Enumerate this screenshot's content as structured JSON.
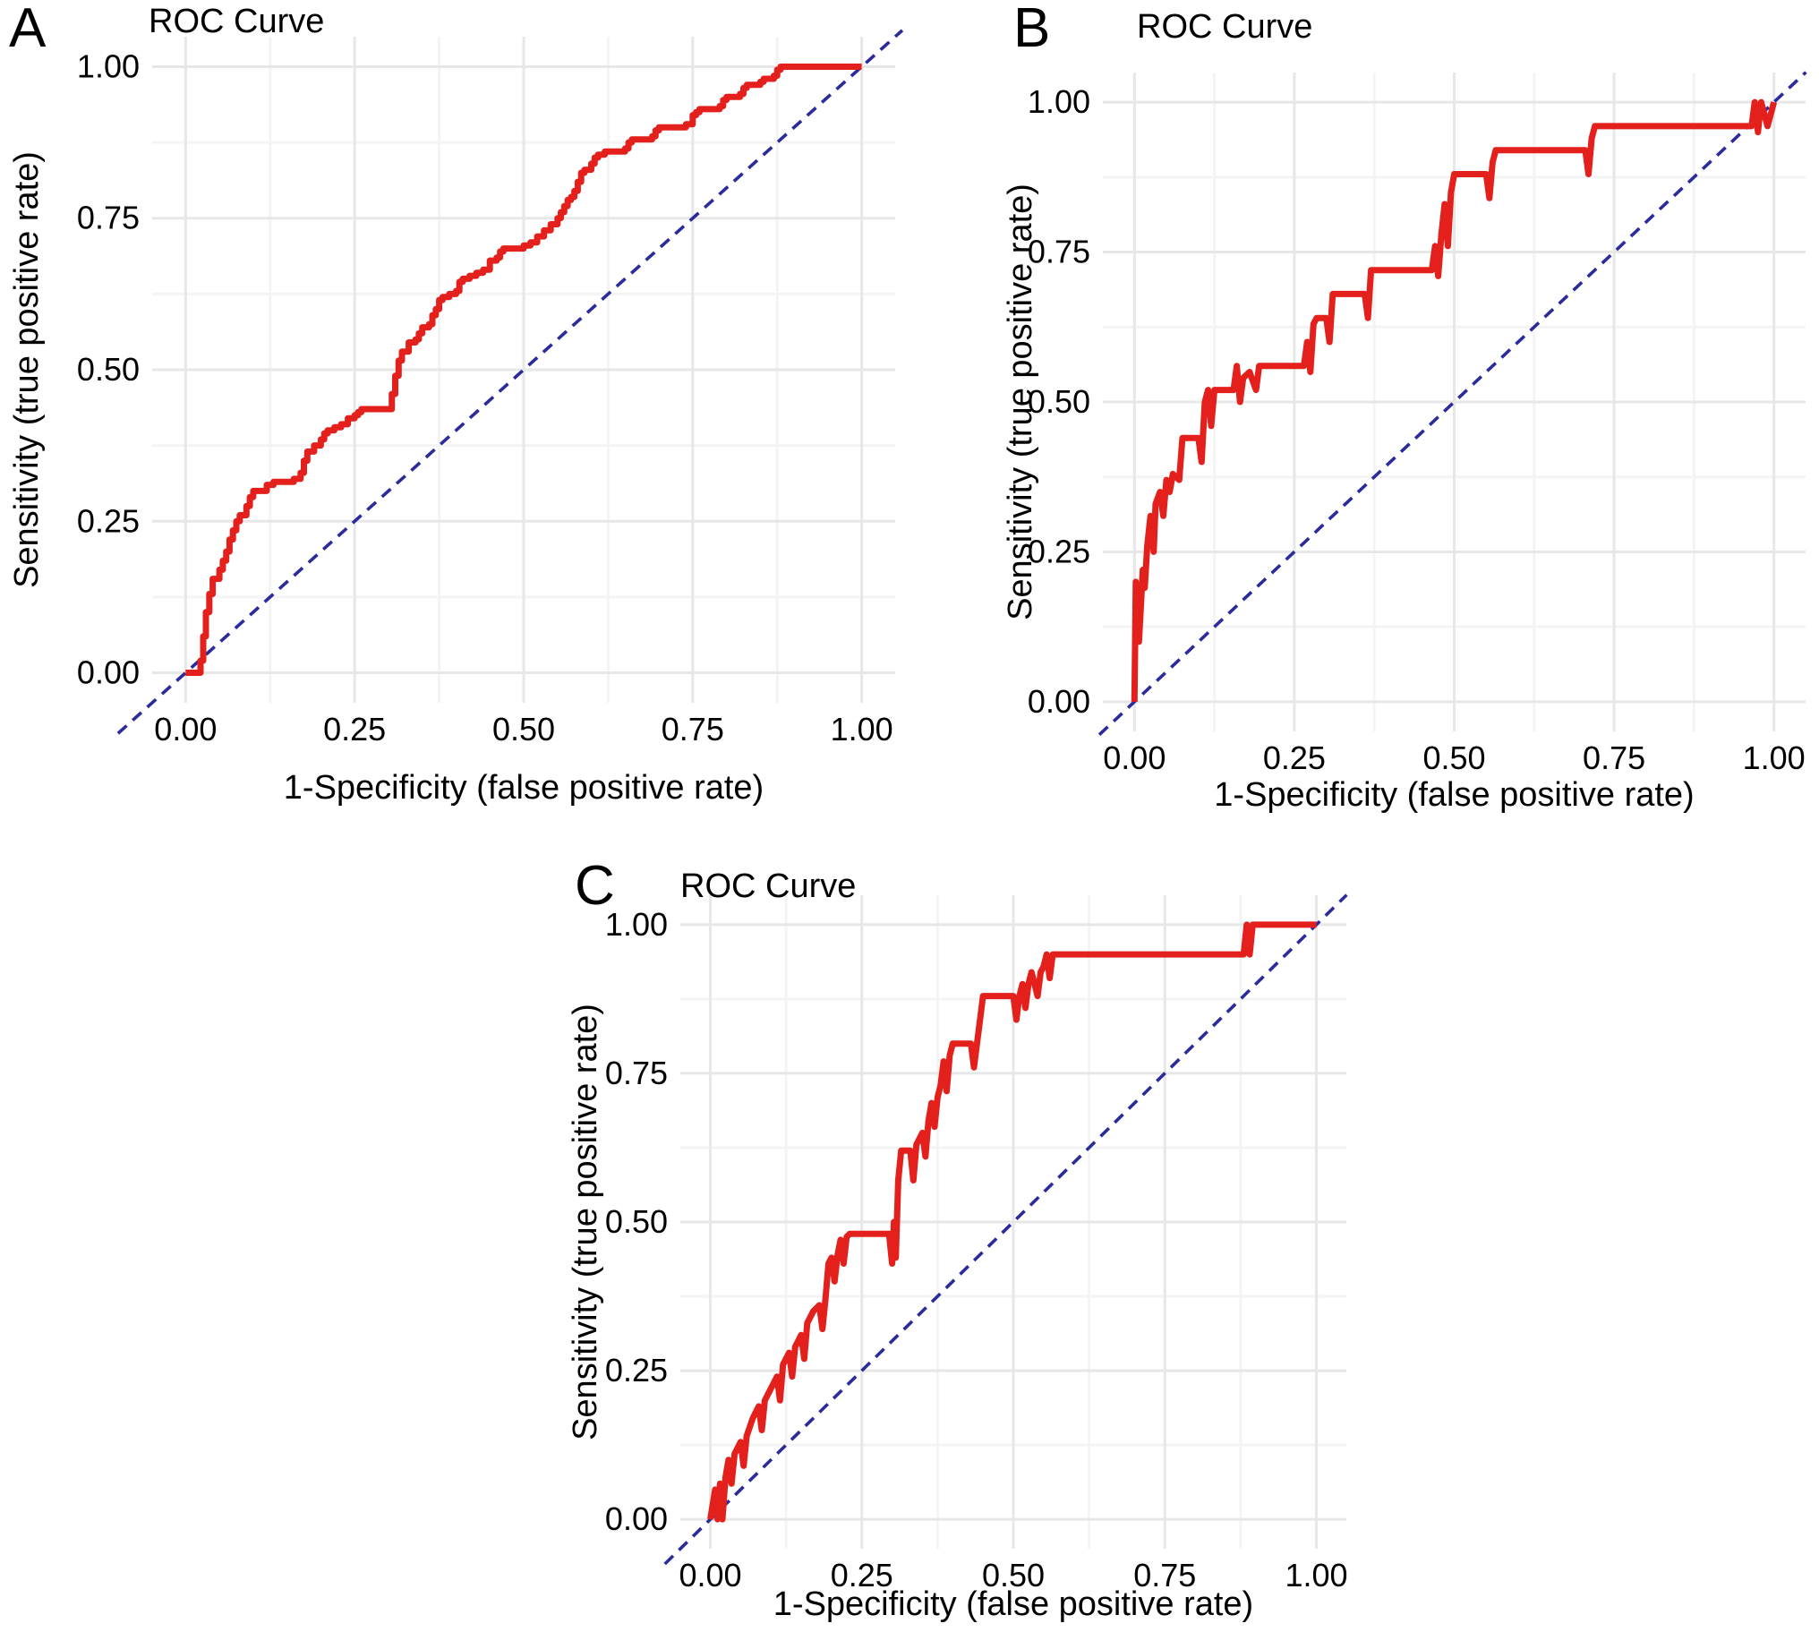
{
  "figure": {
    "background": "#ffffff",
    "description_colors": {
      "curve_red": "#e4201c",
      "diagonal_navy": "#2b2b9b",
      "grid_major": "#e7e7e7",
      "grid_minor": "#f4f4f4",
      "text": "#000000"
    }
  },
  "chart_data": [
    {
      "panel_label": "A",
      "type": "line",
      "title": "ROC Curve",
      "xlabel": "1-Specificity (false positive rate)",
      "ylabel": "Sensitivity (true positive rate)",
      "xlim": [
        0,
        1
      ],
      "ylim": [
        0,
        1
      ],
      "x_ticks": [
        "0.00",
        "0.25",
        "0.50",
        "0.75",
        "1.00"
      ],
      "y_ticks": [
        "0.00",
        "0.25",
        "0.50",
        "0.75",
        "1.00"
      ],
      "grid": {
        "major": [
          0,
          0.25,
          0.5,
          0.75,
          1
        ],
        "minor": [
          0.125,
          0.375,
          0.625,
          0.875
        ]
      },
      "legend": "none",
      "reference_line": {
        "name": "chance-diagonal",
        "style": "dashed",
        "from": [
          0,
          0
        ],
        "to": [
          1,
          1
        ],
        "color": "#2b2b9b"
      },
      "curve": {
        "name": "ROC curve",
        "color": "#e4201c",
        "interpolation": "step",
        "points": [
          [
            0,
            0
          ],
          [
            0.02,
            0
          ],
          [
            0.022,
            0.02
          ],
          [
            0.026,
            0.06
          ],
          [
            0.03,
            0.1
          ],
          [
            0.035,
            0.13
          ],
          [
            0.04,
            0.155
          ],
          [
            0.05,
            0.17
          ],
          [
            0.055,
            0.185
          ],
          [
            0.06,
            0.2
          ],
          [
            0.065,
            0.22
          ],
          [
            0.07,
            0.235
          ],
          [
            0.075,
            0.25
          ],
          [
            0.08,
            0.26
          ],
          [
            0.09,
            0.275
          ],
          [
            0.095,
            0.29
          ],
          [
            0.1,
            0.3
          ],
          [
            0.12,
            0.31
          ],
          [
            0.13,
            0.315
          ],
          [
            0.16,
            0.32
          ],
          [
            0.17,
            0.33
          ],
          [
            0.175,
            0.35
          ],
          [
            0.18,
            0.365
          ],
          [
            0.19,
            0.375
          ],
          [
            0.2,
            0.385
          ],
          [
            0.205,
            0.395
          ],
          [
            0.21,
            0.4
          ],
          [
            0.22,
            0.405
          ],
          [
            0.23,
            0.41
          ],
          [
            0.24,
            0.42
          ],
          [
            0.25,
            0.425
          ],
          [
            0.255,
            0.43
          ],
          [
            0.26,
            0.435
          ],
          [
            0.3,
            0.435
          ],
          [
            0.305,
            0.46
          ],
          [
            0.31,
            0.49
          ],
          [
            0.315,
            0.515
          ],
          [
            0.32,
            0.53
          ],
          [
            0.33,
            0.545
          ],
          [
            0.34,
            0.55
          ],
          [
            0.345,
            0.56
          ],
          [
            0.35,
            0.57
          ],
          [
            0.36,
            0.575
          ],
          [
            0.365,
            0.59
          ],
          [
            0.37,
            0.6
          ],
          [
            0.375,
            0.615
          ],
          [
            0.38,
            0.62
          ],
          [
            0.39,
            0.625
          ],
          [
            0.4,
            0.63
          ],
          [
            0.405,
            0.645
          ],
          [
            0.41,
            0.65
          ],
          [
            0.42,
            0.655
          ],
          [
            0.43,
            0.66
          ],
          [
            0.44,
            0.665
          ],
          [
            0.45,
            0.68
          ],
          [
            0.46,
            0.685
          ],
          [
            0.465,
            0.695
          ],
          [
            0.47,
            0.7
          ],
          [
            0.5,
            0.705
          ],
          [
            0.51,
            0.71
          ],
          [
            0.52,
            0.72
          ],
          [
            0.53,
            0.73
          ],
          [
            0.54,
            0.74
          ],
          [
            0.55,
            0.75
          ],
          [
            0.555,
            0.76
          ],
          [
            0.56,
            0.77
          ],
          [
            0.565,
            0.78
          ],
          [
            0.57,
            0.785
          ],
          [
            0.575,
            0.795
          ],
          [
            0.58,
            0.81
          ],
          [
            0.585,
            0.825
          ],
          [
            0.59,
            0.83
          ],
          [
            0.6,
            0.84
          ],
          [
            0.605,
            0.85
          ],
          [
            0.61,
            0.855
          ],
          [
            0.62,
            0.86
          ],
          [
            0.65,
            0.865
          ],
          [
            0.655,
            0.875
          ],
          [
            0.66,
            0.88
          ],
          [
            0.69,
            0.885
          ],
          [
            0.695,
            0.895
          ],
          [
            0.7,
            0.9
          ],
          [
            0.74,
            0.905
          ],
          [
            0.75,
            0.92
          ],
          [
            0.755,
            0.925
          ],
          [
            0.76,
            0.93
          ],
          [
            0.79,
            0.935
          ],
          [
            0.795,
            0.945
          ],
          [
            0.8,
            0.95
          ],
          [
            0.82,
            0.955
          ],
          [
            0.825,
            0.965
          ],
          [
            0.83,
            0.97
          ],
          [
            0.85,
            0.975
          ],
          [
            0.855,
            0.98
          ],
          [
            0.87,
            0.985
          ],
          [
            0.875,
            0.995
          ],
          [
            0.88,
            1.0
          ],
          [
            1.0,
            1.0
          ]
        ]
      }
    },
    {
      "panel_label": "B",
      "type": "line",
      "title": "ROC Curve",
      "xlabel": "1-Specificity (false positive rate)",
      "ylabel": "Sensitivity (true positive rate)",
      "xlim": [
        0,
        1
      ],
      "ylim": [
        0,
        1
      ],
      "x_ticks": [
        "0.00",
        "0.25",
        "0.50",
        "0.75",
        "1.00"
      ],
      "y_ticks": [
        "0.00",
        "0.25",
        "0.50",
        "0.75",
        "1.00"
      ],
      "grid": {
        "major": [
          0,
          0.25,
          0.5,
          0.75,
          1
        ],
        "minor": [
          0.125,
          0.375,
          0.625,
          0.875
        ]
      },
      "legend": "none",
      "reference_line": {
        "name": "chance-diagonal",
        "style": "dashed",
        "from": [
          0,
          0
        ],
        "to": [
          1,
          1
        ],
        "color": "#2b2b9b"
      },
      "curve": {
        "name": "ROC curve",
        "color": "#e4201c",
        "interpolation": "linear",
        "points": [
          [
            0,
            0
          ],
          [
            0.002,
            0.2
          ],
          [
            0.007,
            0.1
          ],
          [
            0.01,
            0.16
          ],
          [
            0.013,
            0.22
          ],
          [
            0.016,
            0.19
          ],
          [
            0.02,
            0.26
          ],
          [
            0.025,
            0.31
          ],
          [
            0.03,
            0.25
          ],
          [
            0.033,
            0.33
          ],
          [
            0.04,
            0.35
          ],
          [
            0.045,
            0.31
          ],
          [
            0.05,
            0.37
          ],
          [
            0.055,
            0.35
          ],
          [
            0.06,
            0.38
          ],
          [
            0.07,
            0.37
          ],
          [
            0.075,
            0.44
          ],
          [
            0.1,
            0.44
          ],
          [
            0.105,
            0.4
          ],
          [
            0.11,
            0.5
          ],
          [
            0.115,
            0.52
          ],
          [
            0.12,
            0.46
          ],
          [
            0.125,
            0.52
          ],
          [
            0.155,
            0.52
          ],
          [
            0.16,
            0.56
          ],
          [
            0.165,
            0.5
          ],
          [
            0.17,
            0.54
          ],
          [
            0.18,
            0.55
          ],
          [
            0.19,
            0.52
          ],
          [
            0.195,
            0.56
          ],
          [
            0.265,
            0.56
          ],
          [
            0.27,
            0.6
          ],
          [
            0.275,
            0.55
          ],
          [
            0.28,
            0.63
          ],
          [
            0.285,
            0.64
          ],
          [
            0.3,
            0.64
          ],
          [
            0.305,
            0.6
          ],
          [
            0.31,
            0.68
          ],
          [
            0.36,
            0.68
          ],
          [
            0.365,
            0.64
          ],
          [
            0.37,
            0.72
          ],
          [
            0.465,
            0.72
          ],
          [
            0.47,
            0.76
          ],
          [
            0.475,
            0.71
          ],
          [
            0.48,
            0.78
          ],
          [
            0.485,
            0.83
          ],
          [
            0.49,
            0.76
          ],
          [
            0.495,
            0.85
          ],
          [
            0.5,
            0.88
          ],
          [
            0.55,
            0.88
          ],
          [
            0.555,
            0.84
          ],
          [
            0.56,
            0.9
          ],
          [
            0.565,
            0.92
          ],
          [
            0.705,
            0.92
          ],
          [
            0.71,
            0.88
          ],
          [
            0.715,
            0.94
          ],
          [
            0.72,
            0.96
          ],
          [
            0.965,
            0.96
          ],
          [
            0.97,
            1.0
          ],
          [
            0.975,
            0.95
          ],
          [
            0.98,
            1.0
          ],
          [
            0.99,
            0.96
          ],
          [
            1.0,
            1.0
          ]
        ]
      }
    },
    {
      "panel_label": "C",
      "type": "line",
      "title": "ROC Curve",
      "xlabel": "1-Specificity (false positive rate)",
      "ylabel": "Sensitivity (true positive rate)",
      "xlim": [
        0,
        1
      ],
      "ylim": [
        0,
        1
      ],
      "x_ticks": [
        "0.00",
        "0.25",
        "0.50",
        "0.75",
        "1.00"
      ],
      "y_ticks": [
        "0.00",
        "0.25",
        "0.50",
        "0.75",
        "1.00"
      ],
      "grid": {
        "major": [
          0,
          0.25,
          0.5,
          0.75,
          1
        ],
        "minor": [
          0.125,
          0.375,
          0.625,
          0.875
        ]
      },
      "legend": "none",
      "reference_line": {
        "name": "chance-diagonal",
        "style": "dashed",
        "from": [
          0,
          0
        ],
        "to": [
          1,
          1
        ],
        "color": "#2b2b9b"
      },
      "curve": {
        "name": "ROC curve",
        "color": "#e4201c",
        "interpolation": "linear",
        "points": [
          [
            0,
            0
          ],
          [
            0.008,
            0.05
          ],
          [
            0.012,
            0.0
          ],
          [
            0.016,
            0.06
          ],
          [
            0.02,
            0.0
          ],
          [
            0.025,
            0.07
          ],
          [
            0.03,
            0.1
          ],
          [
            0.035,
            0.06
          ],
          [
            0.04,
            0.11
          ],
          [
            0.05,
            0.13
          ],
          [
            0.055,
            0.09
          ],
          [
            0.06,
            0.14
          ],
          [
            0.07,
            0.17
          ],
          [
            0.08,
            0.19
          ],
          [
            0.085,
            0.15
          ],
          [
            0.09,
            0.2
          ],
          [
            0.1,
            0.22
          ],
          [
            0.11,
            0.24
          ],
          [
            0.115,
            0.2
          ],
          [
            0.12,
            0.26
          ],
          [
            0.13,
            0.28
          ],
          [
            0.135,
            0.24
          ],
          [
            0.14,
            0.29
          ],
          [
            0.15,
            0.31
          ],
          [
            0.155,
            0.27
          ],
          [
            0.16,
            0.33
          ],
          [
            0.17,
            0.35
          ],
          [
            0.18,
            0.36
          ],
          [
            0.185,
            0.32
          ],
          [
            0.19,
            0.37
          ],
          [
            0.195,
            0.43
          ],
          [
            0.2,
            0.44
          ],
          [
            0.205,
            0.4
          ],
          [
            0.21,
            0.445
          ],
          [
            0.215,
            0.47
          ],
          [
            0.22,
            0.43
          ],
          [
            0.225,
            0.475
          ],
          [
            0.23,
            0.48
          ],
          [
            0.295,
            0.48
          ],
          [
            0.3,
            0.43
          ],
          [
            0.303,
            0.5
          ],
          [
            0.306,
            0.44
          ],
          [
            0.31,
            0.57
          ],
          [
            0.315,
            0.62
          ],
          [
            0.33,
            0.62
          ],
          [
            0.335,
            0.57
          ],
          [
            0.34,
            0.63
          ],
          [
            0.35,
            0.65
          ],
          [
            0.355,
            0.61
          ],
          [
            0.36,
            0.67
          ],
          [
            0.365,
            0.7
          ],
          [
            0.37,
            0.66
          ],
          [
            0.375,
            0.71
          ],
          [
            0.38,
            0.73
          ],
          [
            0.385,
            0.77
          ],
          [
            0.39,
            0.72
          ],
          [
            0.395,
            0.78
          ],
          [
            0.4,
            0.8
          ],
          [
            0.43,
            0.8
          ],
          [
            0.435,
            0.76
          ],
          [
            0.44,
            0.8
          ],
          [
            0.445,
            0.84
          ],
          [
            0.45,
            0.88
          ],
          [
            0.5,
            0.88
          ],
          [
            0.505,
            0.84
          ],
          [
            0.51,
            0.88
          ],
          [
            0.515,
            0.9
          ],
          [
            0.52,
            0.86
          ],
          [
            0.525,
            0.9
          ],
          [
            0.53,
            0.92
          ],
          [
            0.54,
            0.88
          ],
          [
            0.545,
            0.92
          ],
          [
            0.55,
            0.93
          ],
          [
            0.555,
            0.95
          ],
          [
            0.56,
            0.91
          ],
          [
            0.565,
            0.95
          ],
          [
            0.6,
            0.95
          ],
          [
            0.88,
            0.95
          ],
          [
            0.885,
            1.0
          ],
          [
            0.89,
            0.95
          ],
          [
            0.895,
            1.0
          ],
          [
            0.91,
            1.0
          ],
          [
            1.0,
            1.0
          ]
        ]
      }
    }
  ]
}
